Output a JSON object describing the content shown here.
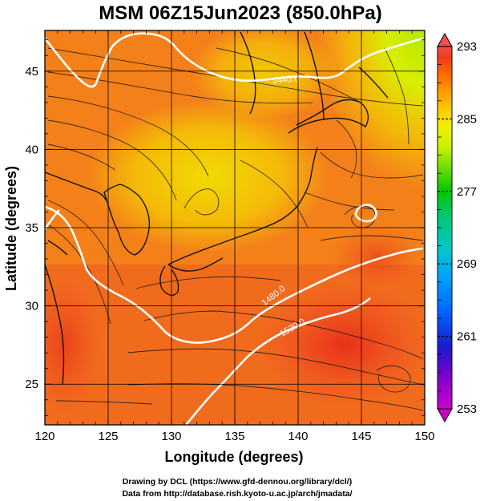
{
  "chart_data": {
    "type": "heatmap",
    "title": "MSM 06Z15Jun2023 (850.0hPa)",
    "xlabel": "Longitude (degrees)",
    "ylabel": "Latitude  (degrees)",
    "xlim": [
      120,
      150
    ],
    "ylim": [
      22.4,
      47.6
    ],
    "x_ticks": [
      120,
      125,
      130,
      135,
      140,
      145,
      150
    ],
    "y_ticks": [
      25,
      30,
      35,
      40,
      45
    ],
    "grid": true,
    "colorbar": {
      "range": [
        253,
        293
      ],
      "tick_values": [
        293,
        285,
        277,
        269,
        261,
        253
      ],
      "tick_labels": [
        "293",
        "285",
        "277",
        "269",
        "261",
        "253"
      ],
      "colors": [
        "#cc00cc",
        "#8800cc",
        "#1a1acc",
        "#0066ff",
        "#00a0ff",
        "#00c8c8",
        "#00c878",
        "#00c800",
        "#64dc00",
        "#c8f000",
        "#f0f000",
        "#ffc800",
        "#ff9600",
        "#ff6400",
        "#f03c1e",
        "#f05050"
      ]
    },
    "contours": [
      {
        "label": "1440.0"
      },
      {
        "label": "1480.0"
      },
      {
        "label": "1520.0"
      }
    ],
    "field_note": ""
  },
  "footer": {
    "line1": "Drawing by DCL (https://www.gfd-dennou.org/library/dcl/)",
    "line2": "Data from http://database.rish.kyoto-u.ac.jp/arch/jmadata/"
  }
}
